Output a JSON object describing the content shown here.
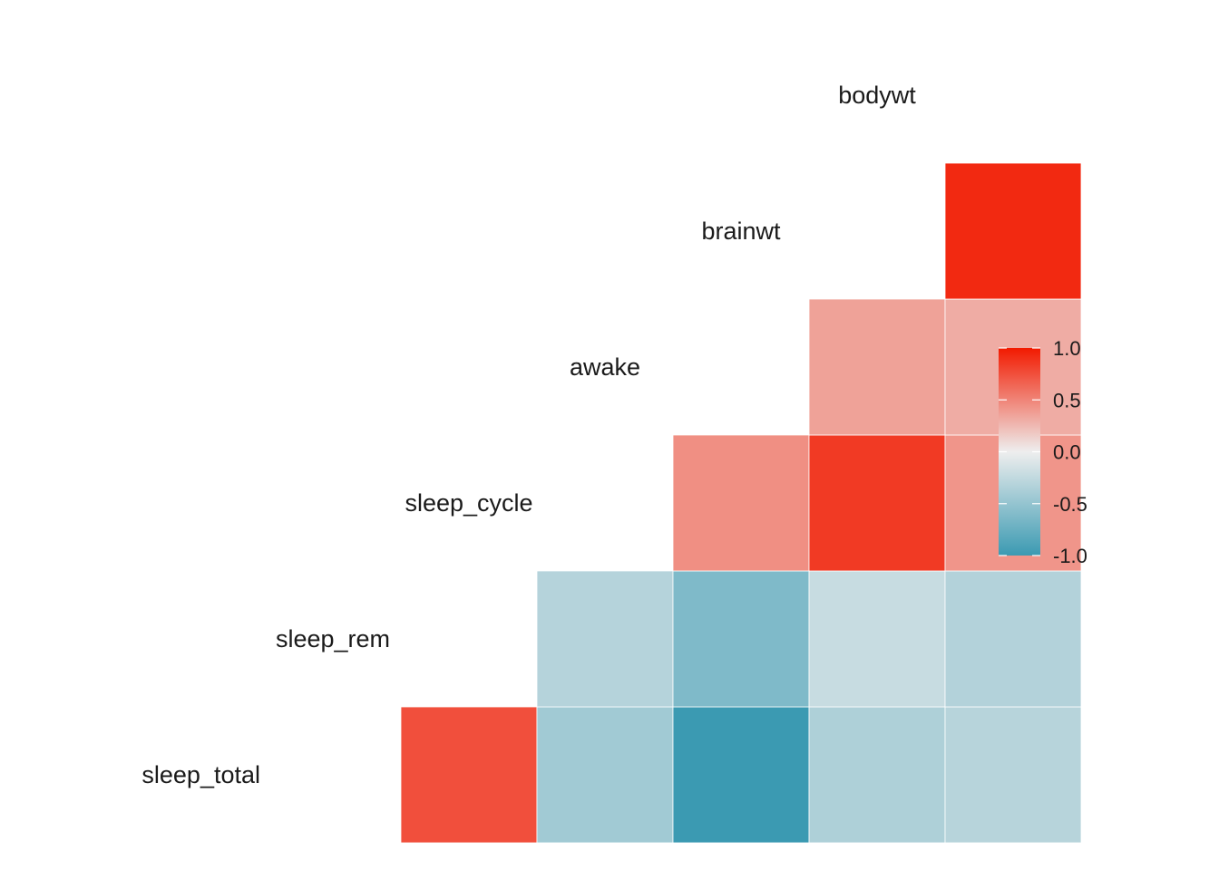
{
  "chart_data": {
    "type": "heatmap",
    "variables": [
      "sleep_total",
      "sleep_rem",
      "sleep_cycle",
      "awake",
      "brainwt",
      "bodywt"
    ],
    "cells": [
      {
        "row": "sleep_rem",
        "col": "sleep_total",
        "value": 0.75
      },
      {
        "row": "sleep_cycle",
        "col": "sleep_total",
        "value": -0.43
      },
      {
        "row": "sleep_cycle",
        "col": "sleep_rem",
        "value": -0.32
      },
      {
        "row": "awake",
        "col": "sleep_total",
        "value": -1.0
      },
      {
        "row": "awake",
        "col": "sleep_rem",
        "value": -0.62
      },
      {
        "row": "awake",
        "col": "sleep_cycle",
        "value": 0.45
      },
      {
        "row": "brainwt",
        "col": "sleep_total",
        "value": -0.36
      },
      {
        "row": "brainwt",
        "col": "sleep_rem",
        "value": -0.22
      },
      {
        "row": "brainwt",
        "col": "sleep_cycle",
        "value": 0.85
      },
      {
        "row": "brainwt",
        "col": "awake",
        "value": 0.36
      },
      {
        "row": "bodywt",
        "col": "sleep_total",
        "value": -0.31
      },
      {
        "row": "bodywt",
        "col": "sleep_rem",
        "value": -0.33
      },
      {
        "row": "bodywt",
        "col": "sleep_cycle",
        "value": 0.42
      },
      {
        "row": "bodywt",
        "col": "awake",
        "value": 0.31
      },
      {
        "row": "bodywt",
        "col": "brainwt",
        "value": 0.93
      }
    ],
    "legend": {
      "position": "right",
      "range": [
        -1,
        1
      ],
      "ticks": [
        "1.0",
        "0.5",
        "0.0",
        "-0.5",
        "-1.0"
      ],
      "low_color": "#3B9AB2",
      "mid_color": "#EEEEEE",
      "high_color": "#F21A00"
    },
    "grid": false
  }
}
